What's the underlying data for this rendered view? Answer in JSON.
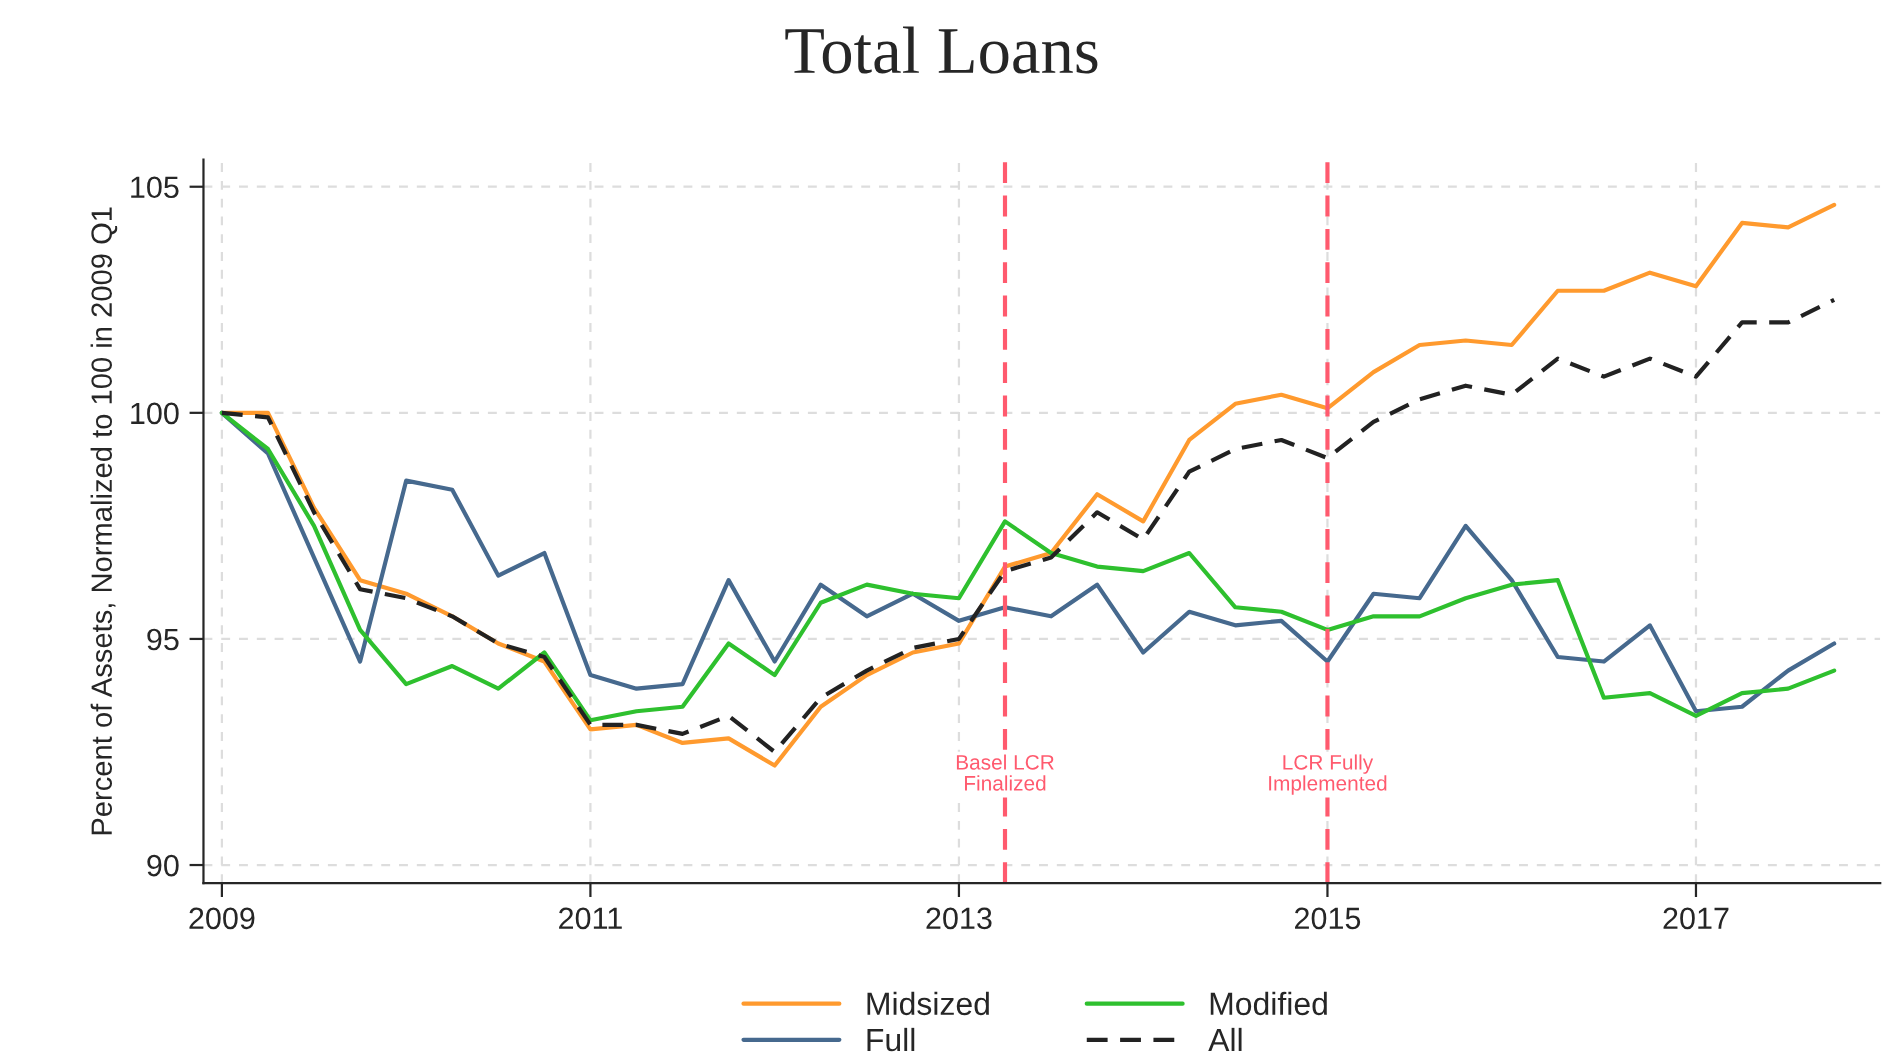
{
  "chart_data": {
    "type": "line",
    "title": "Total Loans",
    "ylabel": "Percent of Assets, Normalized to 100 in 2009 Q1",
    "x": [
      2009,
      2009.25,
      2009.5,
      2009.75,
      2010,
      2010.25,
      2010.5,
      2010.75,
      2011,
      2011.25,
      2011.5,
      2011.75,
      2012,
      2012.25,
      2012.5,
      2012.75,
      2013,
      2013.25,
      2013.5,
      2013.75,
      2014,
      2014.25,
      2014.5,
      2014.75,
      2015,
      2015.25,
      2015.5,
      2015.75,
      2016,
      2016.25,
      2016.5,
      2016.75,
      2017,
      2017.25,
      2017.5,
      2017.75
    ],
    "series": [
      {
        "name": "Midsized",
        "color": "#ff9a2e",
        "line_style": "solid",
        "values": [
          100,
          100,
          97.9,
          96.3,
          96.0,
          95.5,
          94.9,
          94.5,
          93.0,
          93.1,
          92.7,
          92.8,
          92.2,
          93.5,
          94.2,
          94.7,
          94.9,
          96.6,
          96.9,
          98.2,
          97.6,
          99.4,
          100.2,
          100.4,
          100.1,
          100.9,
          101.5,
          101.6,
          101.5,
          102.7,
          102.7,
          103.1,
          102.8,
          104.2,
          104.1,
          104.6
        ]
      },
      {
        "name": "Full",
        "color": "#46698e",
        "line_style": "solid",
        "values": [
          100,
          99.1,
          96.8,
          94.5,
          98.5,
          98.3,
          96.4,
          96.9,
          94.2,
          93.9,
          94.0,
          96.3,
          94.5,
          96.2,
          95.5,
          96.0,
          95.4,
          95.7,
          95.5,
          96.2,
          94.7,
          95.6,
          95.3,
          95.4,
          94.5,
          96.0,
          95.9,
          97.5,
          96.3,
          94.6,
          94.5,
          95.3,
          93.4,
          93.5,
          94.3,
          94.9
        ]
      },
      {
        "name": "Modified",
        "color": "#2ec02e",
        "line_style": "solid",
        "values": [
          100,
          99.2,
          97.5,
          95.2,
          94.0,
          94.4,
          93.9,
          94.7,
          93.2,
          93.4,
          93.5,
          94.9,
          94.2,
          95.8,
          96.2,
          96.0,
          95.9,
          97.6,
          96.9,
          96.6,
          96.5,
          96.9,
          95.7,
          95.6,
          95.2,
          95.5,
          95.5,
          95.9,
          96.2,
          96.3,
          93.7,
          93.8,
          93.3,
          93.8,
          93.9,
          94.3
        ]
      },
      {
        "name": "All",
        "color": "#222222",
        "line_style": "dashed",
        "values": [
          100,
          99.9,
          97.8,
          96.1,
          95.9,
          95.5,
          94.9,
          94.6,
          93.1,
          93.1,
          92.9,
          93.3,
          92.5,
          93.7,
          94.3,
          94.8,
          95.0,
          96.5,
          96.8,
          97.8,
          97.2,
          98.7,
          99.2,
          99.4,
          99.0,
          99.8,
          100.3,
          100.6,
          100.4,
          101.2,
          100.8,
          101.2,
          100.8,
          102.0,
          102.0,
          102.5
        ]
      }
    ],
    "xlim": [
      2008.9,
      2018
    ],
    "xticks": [
      2009,
      2011,
      2013,
      2015,
      2017
    ],
    "ylim": [
      89.6,
      105.6
    ],
    "yticks": [
      90,
      95,
      100,
      105
    ],
    "ref_lines": [
      {
        "axis": "x",
        "value": 2013.25,
        "label": "Basel LCR\nFinalized",
        "color": "#ff5a6e",
        "line_style": "dashed"
      },
      {
        "axis": "x",
        "value": 2015,
        "label": "LCR Fully\nImplemented",
        "color": "#ff5a6e",
        "line_style": "dashed"
      }
    ],
    "grid": true,
    "legend": "bottom",
    "marker": "none"
  }
}
